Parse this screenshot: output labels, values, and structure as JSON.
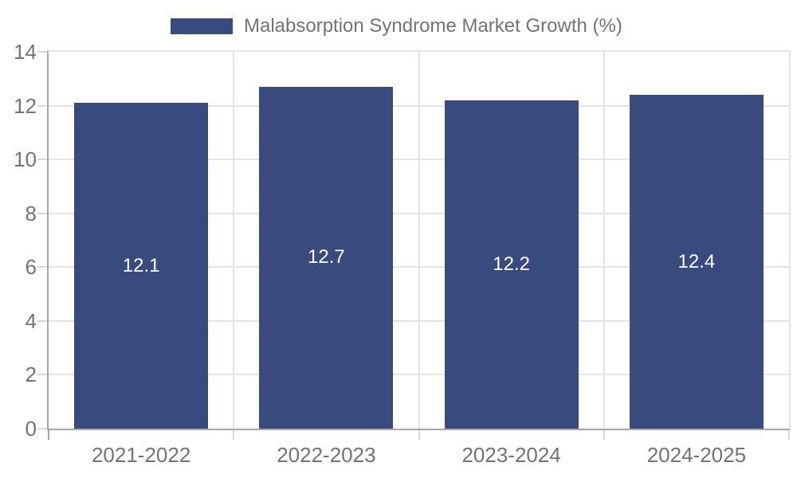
{
  "chart_data": {
    "type": "bar",
    "title": "Malabsorption Syndrome Market Growth (%)",
    "legend": {
      "label": "Malabsorption Syndrome Market Growth (%)",
      "position": "top"
    },
    "categories": [
      "2021-2022",
      "2022-2023",
      "2023-2024",
      "2024-2025"
    ],
    "values": [
      12.1,
      12.7,
      12.2,
      12.4
    ],
    "value_labels": [
      "12.1",
      "12.7",
      "12.2",
      "12.4"
    ],
    "xlabel": "",
    "ylabel": "",
    "ylim": [
      0,
      14
    ],
    "yticks": [
      0,
      2,
      4,
      6,
      8,
      10,
      12,
      14
    ],
    "grid": true,
    "colors": {
      "bar": "#384a7e",
      "grid": "#e4e4e4",
      "axis": "#a6a6a6",
      "tick": "#d9d9d9",
      "label_text": "#737373",
      "value_text": "#ffffff"
    }
  }
}
